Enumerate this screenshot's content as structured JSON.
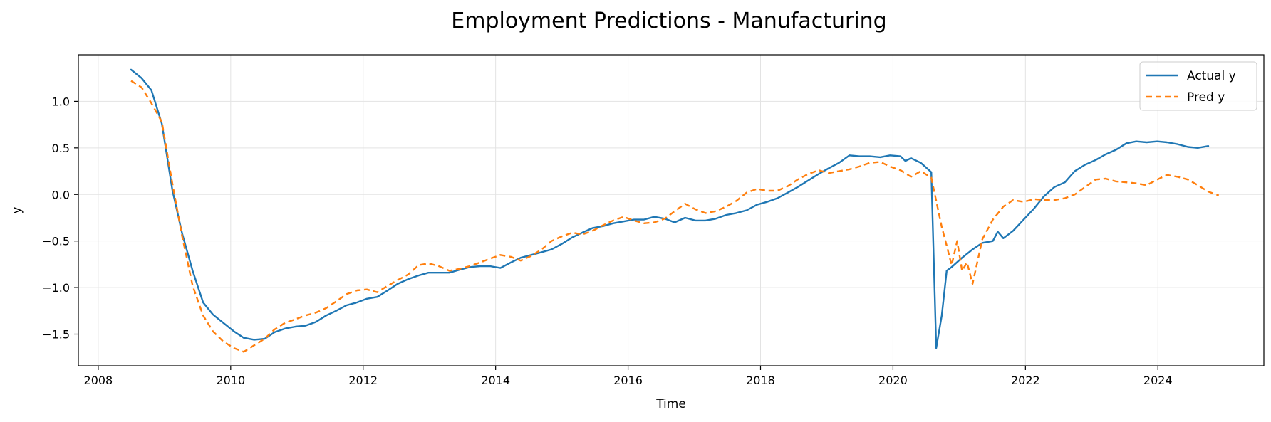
{
  "chart_data": {
    "type": "line",
    "title": "Employment Predictions - Manufacturing",
    "xlabel": "Time",
    "ylabel": "y",
    "xlim": [
      2007.7,
      2025.6
    ],
    "ylim": [
      -1.84,
      1.5
    ],
    "xticks": [
      2008,
      2010,
      2012,
      2014,
      2016,
      2018,
      2020,
      2022,
      2024
    ],
    "yticks": [
      -1.5,
      -1.0,
      -0.5,
      0.0,
      0.5,
      1.0
    ],
    "ytick_labels": [
      "−1.5",
      "−1.0",
      "−0.5",
      "0.0",
      "0.5",
      "1.0"
    ],
    "grid": true,
    "legend_position": "top-right",
    "series": [
      {
        "name": "Actual y",
        "color": "#1f77b4",
        "style": "solid",
        "points": [
          [
            2008.5,
            1.34
          ],
          [
            2008.67,
            1.25
          ],
          [
            2008.83,
            1.12
          ],
          [
            2009.0,
            0.76
          ],
          [
            2009.17,
            0.05
          ],
          [
            2009.33,
            -0.42
          ],
          [
            2009.5,
            -0.82
          ],
          [
            2009.67,
            -1.16
          ],
          [
            2009.83,
            -1.29
          ],
          [
            2010.0,
            -1.38
          ],
          [
            2010.17,
            -1.47
          ],
          [
            2010.33,
            -1.54
          ],
          [
            2010.5,
            -1.56
          ],
          [
            2010.67,
            -1.55
          ],
          [
            2010.83,
            -1.48
          ],
          [
            2011.0,
            -1.44
          ],
          [
            2011.17,
            -1.42
          ],
          [
            2011.33,
            -1.41
          ],
          [
            2011.5,
            -1.37
          ],
          [
            2011.67,
            -1.3
          ],
          [
            2011.83,
            -1.25
          ],
          [
            2012.0,
            -1.19
          ],
          [
            2012.17,
            -1.16
          ],
          [
            2012.33,
            -1.12
          ],
          [
            2012.5,
            -1.1
          ],
          [
            2012.67,
            -1.03
          ],
          [
            2012.83,
            -0.96
          ],
          [
            2013.0,
            -0.91
          ],
          [
            2013.17,
            -0.87
          ],
          [
            2013.33,
            -0.84
          ],
          [
            2013.5,
            -0.84
          ],
          [
            2013.67,
            -0.84
          ],
          [
            2013.83,
            -0.81
          ],
          [
            2014.0,
            -0.78
          ],
          [
            2014.17,
            -0.77
          ],
          [
            2014.33,
            -0.77
          ],
          [
            2014.5,
            -0.79
          ],
          [
            2014.67,
            -0.73
          ],
          [
            2014.83,
            -0.68
          ],
          [
            2015.0,
            -0.65
          ],
          [
            2015.17,
            -0.62
          ],
          [
            2015.33,
            -0.59
          ],
          [
            2015.5,
            -0.53
          ],
          [
            2015.67,
            -0.46
          ],
          [
            2015.83,
            -0.41
          ],
          [
            2016.0,
            -0.36
          ],
          [
            2016.17,
            -0.34
          ],
          [
            2016.33,
            -0.31
          ],
          [
            2016.5,
            -0.29
          ],
          [
            2016.67,
            -0.27
          ],
          [
            2016.83,
            -0.27
          ],
          [
            2017.0,
            -0.24
          ],
          [
            2017.17,
            -0.26
          ],
          [
            2017.33,
            -0.3
          ],
          [
            2017.5,
            -0.25
          ],
          [
            2017.67,
            -0.28
          ],
          [
            2017.83,
            -0.28
          ],
          [
            2018.0,
            -0.26
          ],
          [
            2018.17,
            -0.22
          ],
          [
            2018.33,
            -0.2
          ],
          [
            2018.5,
            -0.17
          ],
          [
            2018.67,
            -0.11
          ],
          [
            2018.83,
            -0.08
          ],
          [
            2019.0,
            -0.04
          ],
          [
            2019.17,
            0.02
          ],
          [
            2019.33,
            0.08
          ],
          [
            2019.5,
            0.15
          ],
          [
            2019.67,
            0.22
          ],
          [
            2019.83,
            0.28
          ],
          [
            2020.0,
            0.34
          ],
          [
            2020.17,
            0.42
          ],
          [
            2020.33,
            0.41
          ],
          [
            2020.5,
            0.41
          ],
          [
            2020.67,
            0.4
          ],
          [
            2020.83,
            0.42
          ],
          [
            2021.0,
            0.41
          ],
          [
            2021.08,
            0.36
          ],
          [
            2021.17,
            0.39
          ],
          [
            2021.33,
            0.34
          ],
          [
            2021.5,
            0.24
          ],
          [
            2021.58,
            -1.65
          ],
          [
            2021.67,
            -1.3
          ],
          [
            2021.75,
            -0.82
          ],
          [
            2021.83,
            -0.78
          ],
          [
            2022.0,
            -0.68
          ],
          [
            2022.17,
            -0.59
          ],
          [
            2022.33,
            -0.52
          ],
          [
            2022.5,
            -0.5
          ],
          [
            2022.58,
            -0.4
          ],
          [
            2022.67,
            -0.47
          ],
          [
            2022.83,
            -0.39
          ],
          [
            2023.0,
            -0.27
          ],
          [
            2023.17,
            -0.15
          ],
          [
            2023.33,
            -0.02
          ],
          [
            2023.5,
            0.08
          ],
          [
            2023.67,
            0.13
          ],
          [
            2023.83,
            0.25
          ],
          [
            2024.0,
            0.32
          ],
          [
            2024.17,
            0.37
          ],
          [
            2024.33,
            0.43
          ],
          [
            2024.5,
            0.48
          ],
          [
            2024.67,
            0.55
          ],
          [
            2024.83,
            0.57
          ],
          [
            2025.0,
            0.56
          ],
          [
            2025.17,
            0.57
          ],
          [
            2025.33,
            0.56
          ],
          [
            2025.5,
            0.54
          ],
          [
            2025.67,
            0.51
          ],
          [
            2025.83,
            0.5
          ],
          [
            2026.0,
            0.52
          ]
        ]
      },
      {
        "name": "Pred y",
        "color": "#ff7f0e",
        "style": "dashed",
        "points": [
          [
            2008.5,
            1.22
          ],
          [
            2008.67,
            1.15
          ],
          [
            2008.83,
            0.98
          ],
          [
            2009.0,
            0.78
          ],
          [
            2009.17,
            0.12
          ],
          [
            2009.33,
            -0.45
          ],
          [
            2009.5,
            -0.98
          ],
          [
            2009.67,
            -1.3
          ],
          [
            2009.83,
            -1.47
          ],
          [
            2010.0,
            -1.58
          ],
          [
            2010.17,
            -1.65
          ],
          [
            2010.33,
            -1.69
          ],
          [
            2010.5,
            -1.62
          ],
          [
            2010.67,
            -1.55
          ],
          [
            2010.83,
            -1.45
          ],
          [
            2011.0,
            -1.38
          ],
          [
            2011.17,
            -1.34
          ],
          [
            2011.33,
            -1.3
          ],
          [
            2011.5,
            -1.27
          ],
          [
            2011.67,
            -1.22
          ],
          [
            2011.83,
            -1.15
          ],
          [
            2012.0,
            -1.07
          ],
          [
            2012.17,
            -1.03
          ],
          [
            2012.33,
            -1.02
          ],
          [
            2012.5,
            -1.05
          ],
          [
            2012.67,
            -0.98
          ],
          [
            2012.83,
            -0.92
          ],
          [
            2013.0,
            -0.86
          ],
          [
            2013.17,
            -0.76
          ],
          [
            2013.33,
            -0.74
          ],
          [
            2013.5,
            -0.77
          ],
          [
            2013.67,
            -0.82
          ],
          [
            2013.83,
            -0.8
          ],
          [
            2014.0,
            -0.77
          ],
          [
            2014.17,
            -0.73
          ],
          [
            2014.33,
            -0.69
          ],
          [
            2014.5,
            -0.65
          ],
          [
            2014.67,
            -0.67
          ],
          [
            2014.83,
            -0.71
          ],
          [
            2015.0,
            -0.66
          ],
          [
            2015.17,
            -0.59
          ],
          [
            2015.33,
            -0.5
          ],
          [
            2015.5,
            -0.45
          ],
          [
            2015.67,
            -0.41
          ],
          [
            2015.83,
            -0.43
          ],
          [
            2016.0,
            -0.39
          ],
          [
            2016.17,
            -0.33
          ],
          [
            2016.33,
            -0.28
          ],
          [
            2016.5,
            -0.24
          ],
          [
            2016.67,
            -0.28
          ],
          [
            2016.83,
            -0.31
          ],
          [
            2017.0,
            -0.3
          ],
          [
            2017.17,
            -0.26
          ],
          [
            2017.33,
            -0.18
          ],
          [
            2017.5,
            -0.1
          ],
          [
            2017.67,
            -0.16
          ],
          [
            2017.83,
            -0.2
          ],
          [
            2018.0,
            -0.18
          ],
          [
            2018.17,
            -0.13
          ],
          [
            2018.33,
            -0.07
          ],
          [
            2018.5,
            0.02
          ],
          [
            2018.67,
            0.06
          ],
          [
            2018.83,
            0.04
          ],
          [
            2019.0,
            0.04
          ],
          [
            2019.17,
            0.09
          ],
          [
            2019.33,
            0.16
          ],
          [
            2019.5,
            0.22
          ],
          [
            2019.67,
            0.26
          ],
          [
            2019.83,
            0.23
          ],
          [
            2020.0,
            0.25
          ],
          [
            2020.17,
            0.27
          ],
          [
            2020.33,
            0.3
          ],
          [
            2020.5,
            0.34
          ],
          [
            2020.67,
            0.35
          ],
          [
            2020.83,
            0.3
          ],
          [
            2021.0,
            0.26
          ],
          [
            2021.17,
            0.19
          ],
          [
            2021.33,
            0.25
          ],
          [
            2021.5,
            0.18
          ],
          [
            2021.67,
            -0.35
          ],
          [
            2021.75,
            -0.55
          ],
          [
            2021.83,
            -0.76
          ],
          [
            2021.92,
            -0.5
          ],
          [
            2022.0,
            -0.82
          ],
          [
            2022.08,
            -0.73
          ],
          [
            2022.17,
            -0.96
          ],
          [
            2022.33,
            -0.48
          ],
          [
            2022.5,
            -0.27
          ],
          [
            2022.67,
            -0.13
          ],
          [
            2022.83,
            -0.06
          ],
          [
            2023.0,
            -0.08
          ],
          [
            2023.17,
            -0.05
          ],
          [
            2023.33,
            -0.06
          ],
          [
            2023.5,
            -0.06
          ],
          [
            2023.67,
            -0.04
          ],
          [
            2023.83,
            0.0
          ],
          [
            2024.0,
            0.08
          ],
          [
            2024.17,
            0.16
          ],
          [
            2024.33,
            0.17
          ],
          [
            2024.5,
            0.14
          ],
          [
            2024.67,
            0.13
          ],
          [
            2024.83,
            0.12
          ],
          [
            2025.0,
            0.1
          ],
          [
            2025.17,
            0.16
          ],
          [
            2025.33,
            0.21
          ],
          [
            2025.5,
            0.19
          ],
          [
            2025.67,
            0.16
          ],
          [
            2025.83,
            0.1
          ],
          [
            2026.0,
            0.03
          ],
          [
            2026.17,
            -0.01
          ]
        ]
      }
    ]
  }
}
